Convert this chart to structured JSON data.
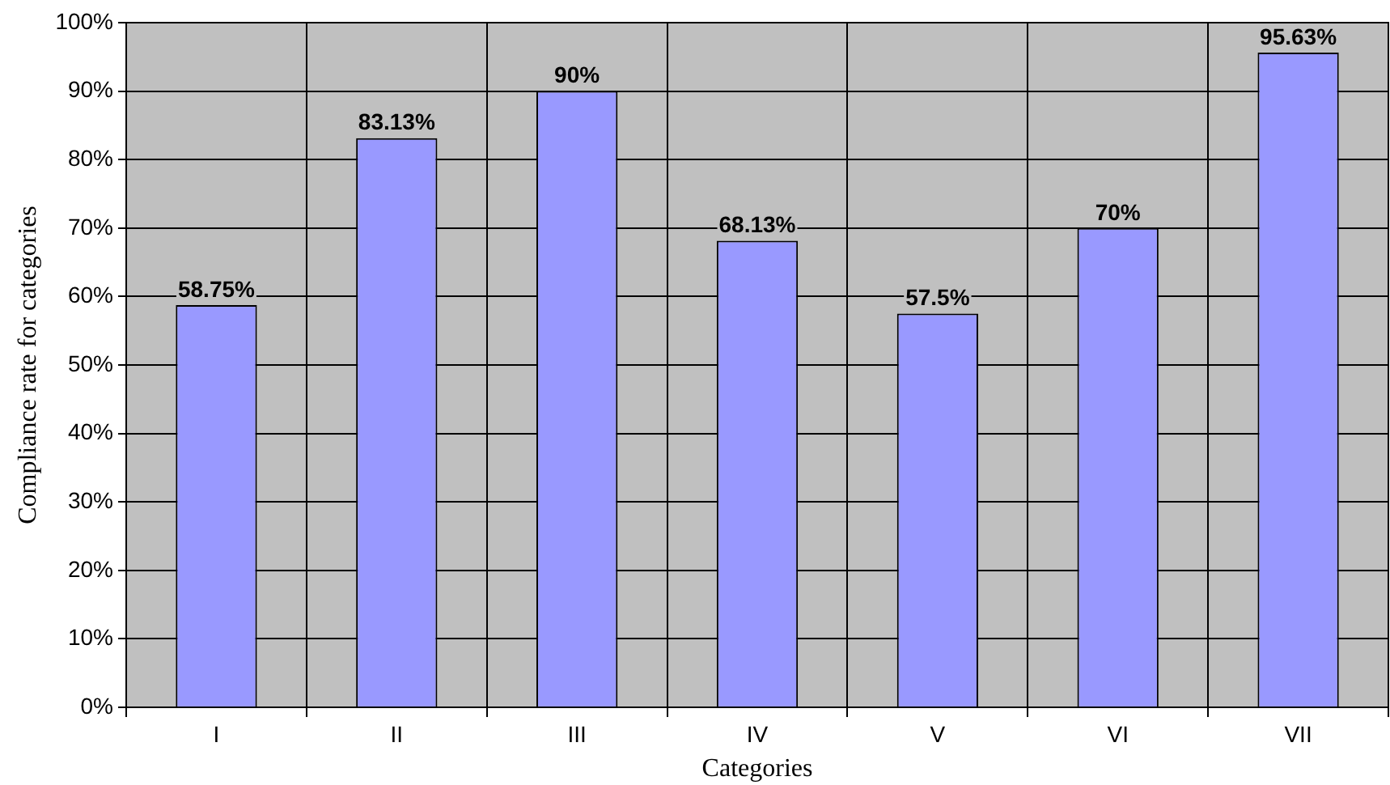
{
  "chart_data": {
    "type": "bar",
    "xlabel": "Categories",
    "ylabel": "Compliance rate for categories",
    "categories": [
      "I",
      "II",
      "III",
      "IV",
      "V",
      "VI",
      "VII"
    ],
    "values": [
      58.75,
      83.13,
      90,
      68.13,
      57.5,
      70,
      95.63
    ],
    "value_labels": [
      "58.75%",
      "83.13%",
      "90%",
      "68.13%",
      "57.5%",
      "70%",
      "95.63%"
    ],
    "color": "#9999ff",
    "ylim": [
      0,
      100
    ],
    "yticks": [
      {
        "value": 0,
        "label": "0%"
      },
      {
        "value": 10,
        "label": "10%"
      },
      {
        "value": 20,
        "label": "20%"
      },
      {
        "value": 30,
        "label": "30%"
      },
      {
        "value": 40,
        "label": "40%"
      },
      {
        "value": 50,
        "label": "50%"
      },
      {
        "value": 60,
        "label": "60%"
      },
      {
        "value": 70,
        "label": "70%"
      },
      {
        "value": 80,
        "label": "80%"
      },
      {
        "value": 90,
        "label": "90%"
      },
      {
        "value": 100,
        "label": "100%"
      }
    ],
    "grid": true
  }
}
